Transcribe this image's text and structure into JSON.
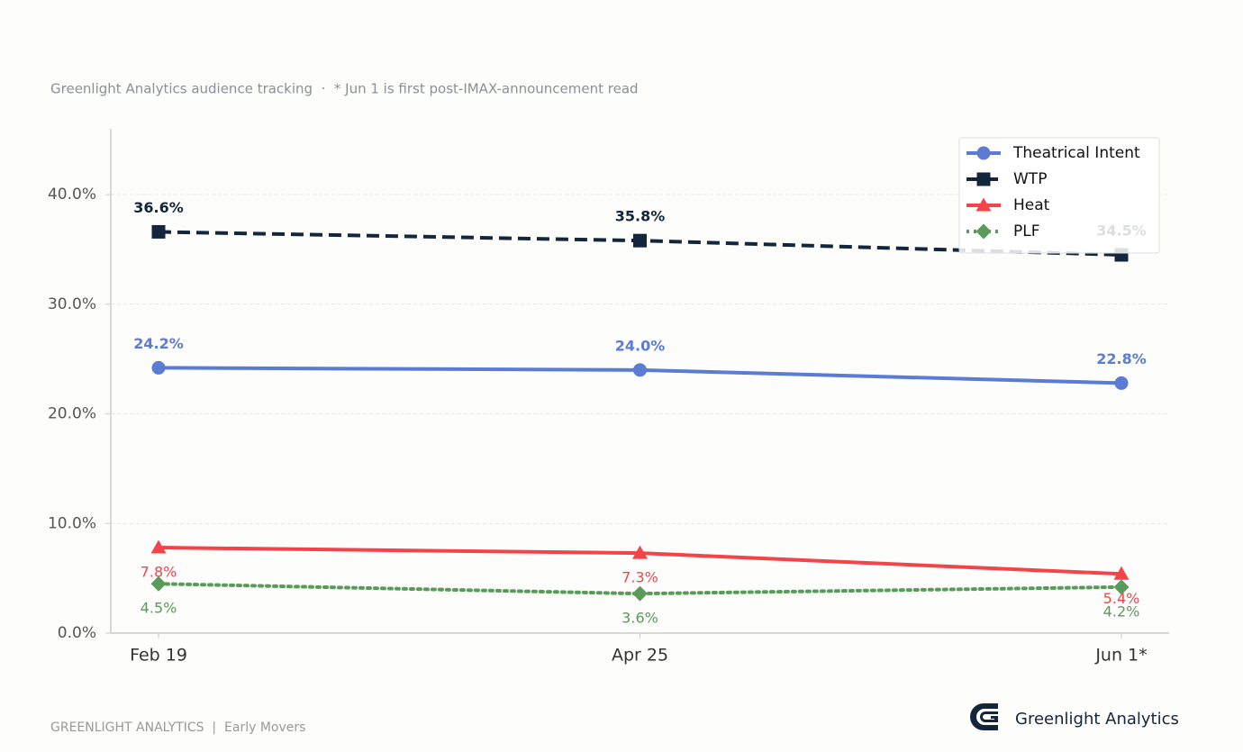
{
  "chart_data": {
    "type": "line",
    "subtitle": "Greenlight Analytics audience tracking  ·  * Jun 1 is first post-IMAX-announcement read",
    "categories": [
      "Feb 19",
      "Apr 25",
      "Jun 1*"
    ],
    "series": [
      {
        "name": "Theatrical Intent",
        "color": "#5b7bd5",
        "dash": "solid",
        "marker": "circle",
        "label_position": "above",
        "values": [
          24.2,
          24.0,
          22.8
        ],
        "value_labels": [
          "24.2%",
          "24.0%",
          "22.8%"
        ]
      },
      {
        "name": "WTP",
        "color": "#13263b",
        "dash": "dashed",
        "marker": "square",
        "label_position": "above",
        "values": [
          36.6,
          35.8,
          34.5
        ],
        "value_labels": [
          "36.6%",
          "35.8%",
          "34.5%"
        ]
      },
      {
        "name": "Heat",
        "color": "#f4444a",
        "dash": "solid",
        "marker": "triangle",
        "label_position": "below",
        "values": [
          7.8,
          7.3,
          5.4
        ],
        "value_labels": [
          "7.8%",
          "7.3%",
          "5.4%"
        ]
      },
      {
        "name": "PLF",
        "color": "#5a9a5a",
        "dash": "dotted",
        "marker": "diamond",
        "label_position": "below",
        "values": [
          4.5,
          3.6,
          4.2
        ],
        "value_labels": [
          "4.5%",
          "3.6%",
          "4.2%"
        ]
      }
    ],
    "ylim": [
      0,
      46
    ],
    "yticks": [
      {
        "value": 0,
        "label": "0.0%"
      },
      {
        "value": 10,
        "label": "10.0%"
      },
      {
        "value": 20,
        "label": "20.0%"
      },
      {
        "value": 30,
        "label": "30.0%"
      },
      {
        "value": 40,
        "label": "40.0%"
      }
    ],
    "grid": true,
    "legend": "upper-right"
  },
  "footer": {
    "left": "GREENLIGHT ANALYTICS  |  Early Movers",
    "brand": "Greenlight Analytics"
  }
}
